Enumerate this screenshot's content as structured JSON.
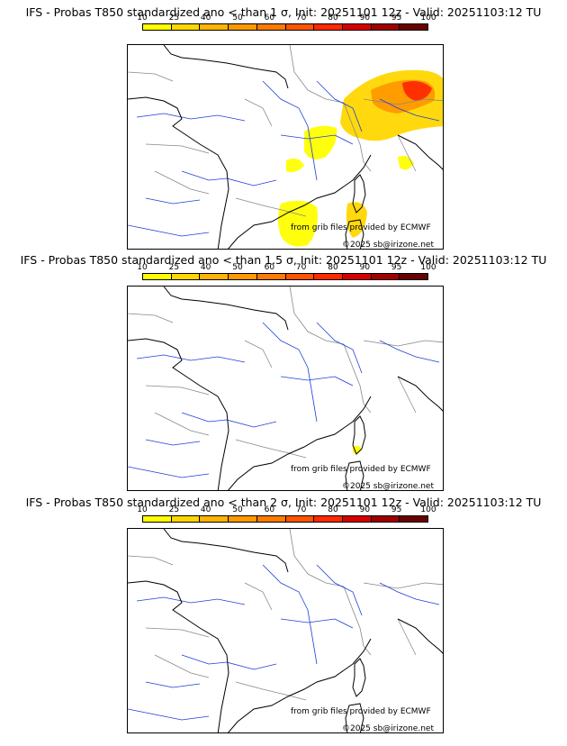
{
  "panels": [
    {
      "title": "IFS - Probas T850  standardized ano < than 1 σ, Init: 20251101 12z - Valid: 20251103:12 TU",
      "source_credit": "from grib files provided by ECMWF",
      "copyright": "©2025 sb@irizone.net",
      "probability_area": "large"
    },
    {
      "title": "IFS - Probas T850  standardized ano < than 1.5 σ, Init: 20251101 12z - Valid: 20251103:12 TU",
      "source_credit": "from grib files provided by ECMWF",
      "copyright": "©2025 sb@irizone.net",
      "probability_area": "tiny"
    },
    {
      "title": "IFS - Probas T850  standardized ano < than 2 σ, Init: 20251101 12z - Valid: 20251103:12 TU",
      "source_credit": "from grib files provided by ECMWF",
      "copyright": "©2025 sb@irizone.net",
      "probability_area": "none"
    }
  ],
  "scale": {
    "labels": [
      "10",
      "25",
      "40",
      "50",
      "60",
      "70",
      "80",
      "90",
      "95",
      "100"
    ],
    "colors": [
      "#ffff00",
      "#ffd700",
      "#ffb400",
      "#ff9900",
      "#ff7a00",
      "#ff5500",
      "#ff2a00",
      "#d80000",
      "#a00000",
      "#6a0000"
    ]
  },
  "colors": {
    "river": "#1f3fd8",
    "border": "#888888",
    "coast": "#000000"
  }
}
